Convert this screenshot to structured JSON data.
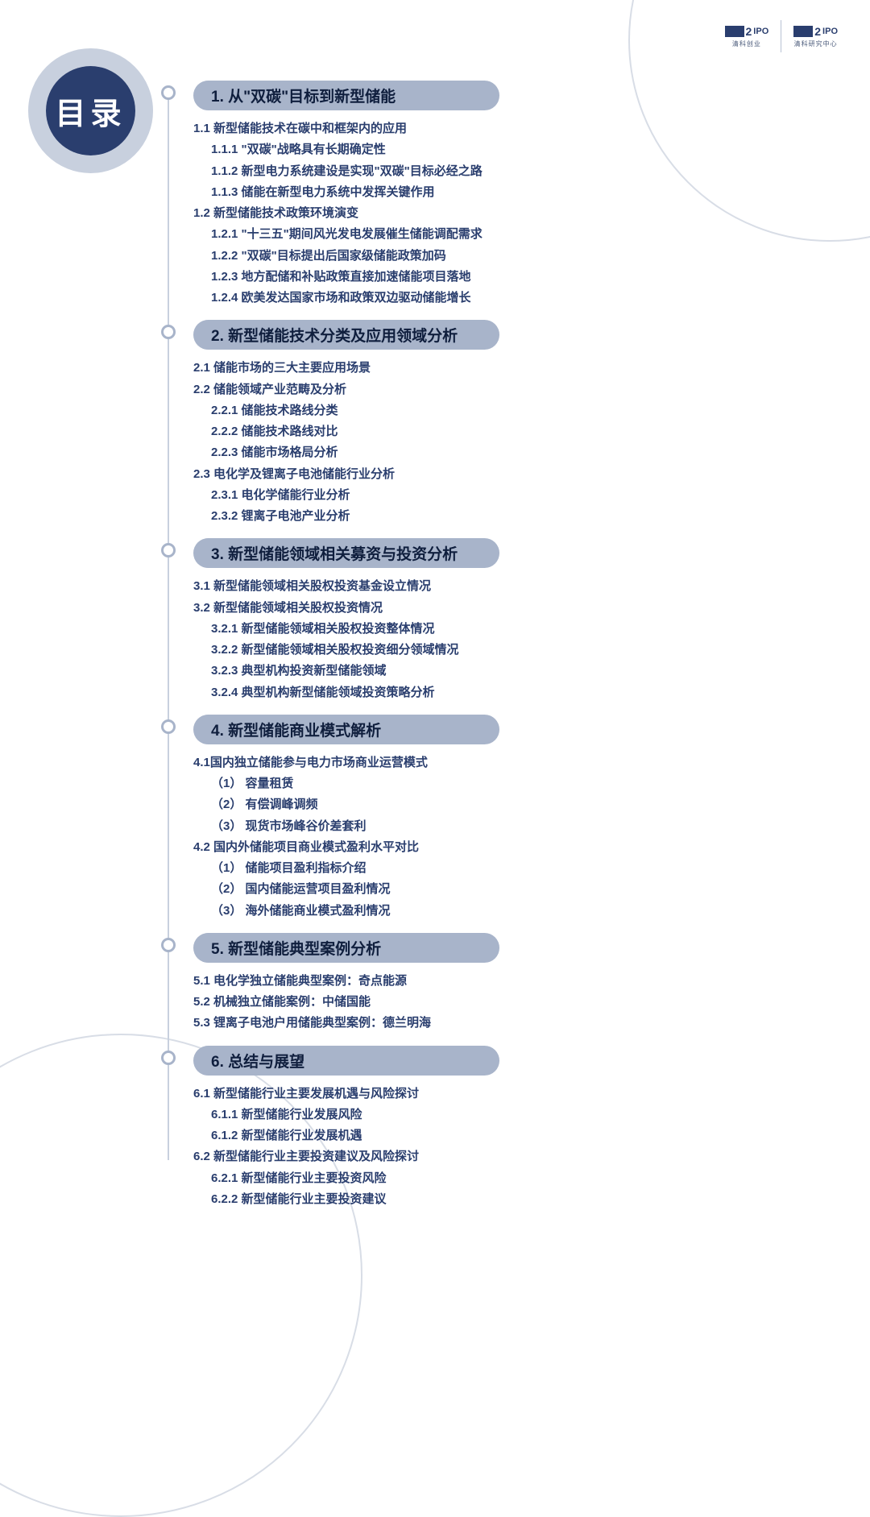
{
  "title": "目录",
  "logo": {
    "two": "2",
    "ipo": "IPO",
    "sub1": "清科创业",
    "sub2": "清科研究中心"
  },
  "colors": {
    "pill_bg": "#a8b4ca",
    "text_primary": "#2a3e6e",
    "badge_bg": "#2a3e6e",
    "ring": "#c8d0de",
    "line": "#c8d0de"
  },
  "sections": [
    {
      "heading": "1. 从\"双碳\"目标到新型储能",
      "items": [
        {
          "lvl": 1,
          "text": "1.1 新型储能技术在碳中和框架内的应用"
        },
        {
          "lvl": 2,
          "text": "1.1.1 \"双碳\"战略具有长期确定性"
        },
        {
          "lvl": 2,
          "text": "1.1.2 新型电力系统建设是实现\"双碳\"目标必经之路"
        },
        {
          "lvl": 2,
          "text": "1.1.3 储能在新型电力系统中发挥关键作用"
        },
        {
          "lvl": 1,
          "text": "1.2 新型储能技术政策环境演变"
        },
        {
          "lvl": 2,
          "text": "1.2.1 \"十三五\"期间风光发电发展催生储能调配需求"
        },
        {
          "lvl": 2,
          "text": "1.2.2 \"双碳\"目标提出后国家级储能政策加码"
        },
        {
          "lvl": 2,
          "text": "1.2.3 地方配储和补贴政策直接加速储能项目落地"
        },
        {
          "lvl": 2,
          "text": "1.2.4 欧美发达国家市场和政策双边驱动储能增长"
        }
      ]
    },
    {
      "heading": "2. 新型储能技术分类及应用领域分析",
      "items": [
        {
          "lvl": 1,
          "text": "2.1 储能市场的三大主要应用场景"
        },
        {
          "lvl": 1,
          "text": "2.2 储能领域产业范畴及分析"
        },
        {
          "lvl": 2,
          "text": "2.2.1 储能技术路线分类"
        },
        {
          "lvl": 2,
          "text": "2.2.2 储能技术路线对比"
        },
        {
          "lvl": 2,
          "text": "2.2.3 储能市场格局分析"
        },
        {
          "lvl": 1,
          "text": "2.3 电化学及锂离子电池储能行业分析"
        },
        {
          "lvl": 2,
          "text": "2.3.1 电化学储能行业分析"
        },
        {
          "lvl": 2,
          "text": "2.3.2 锂离子电池产业分析"
        }
      ]
    },
    {
      "heading": "3. 新型储能领域相关募资与投资分析",
      "items": [
        {
          "lvl": 1,
          "text": "3.1 新型储能领域相关股权投资基金设立情况"
        },
        {
          "lvl": 1,
          "text": "3.2 新型储能领域相关股权投资情况"
        },
        {
          "lvl": 2,
          "text": "3.2.1 新型储能领域相关股权投资整体情况"
        },
        {
          "lvl": 2,
          "text": "3.2.2 新型储能领域相关股权投资细分领域情况"
        },
        {
          "lvl": 2,
          "text": "3.2.3 典型机构投资新型储能领域"
        },
        {
          "lvl": 2,
          "text": "3.2.4 典型机构新型储能领域投资策略分析"
        }
      ]
    },
    {
      "heading": "4. 新型储能商业模式解析",
      "items": [
        {
          "lvl": 1,
          "text": "4.1国内独立储能参与电力市场商业运营模式"
        },
        {
          "lvl": 2,
          "text": "（1） 容量租赁"
        },
        {
          "lvl": 2,
          "text": "（2） 有偿调峰调频"
        },
        {
          "lvl": 2,
          "text": "（3） 现货市场峰谷价差套利"
        },
        {
          "lvl": 1,
          "text": "4.2 国内外储能项目商业模式盈利水平对比"
        },
        {
          "lvl": 2,
          "text": "（1） 储能项目盈利指标介绍"
        },
        {
          "lvl": 2,
          "text": "（2） 国内储能运营项目盈利情况"
        },
        {
          "lvl": 2,
          "text": "（3） 海外储能商业模式盈利情况"
        }
      ]
    },
    {
      "heading": "5. 新型储能典型案例分析",
      "items": [
        {
          "lvl": 1,
          "text": "5.1 电化学独立储能典型案例：奇点能源"
        },
        {
          "lvl": 1,
          "text": "5.2 机械独立储能案例：中储国能"
        },
        {
          "lvl": 1,
          "text": "5.3 锂离子电池户用储能典型案例：德兰明海"
        }
      ]
    },
    {
      "heading": "6. 总结与展望",
      "items": [
        {
          "lvl": 1,
          "text": "6.1 新型储能行业主要发展机遇与风险探讨"
        },
        {
          "lvl": 2,
          "text": "6.1.1 新型储能行业发展风险"
        },
        {
          "lvl": 2,
          "text": "6.1.2 新型储能行业发展机遇"
        },
        {
          "lvl": 1,
          "text": "6.2 新型储能行业主要投资建议及风险探讨"
        },
        {
          "lvl": 2,
          "text": "6.2.1 新型储能行业主要投资风险"
        },
        {
          "lvl": 2,
          "text": "6.2.2 新型储能行业主要投资建议"
        }
      ]
    }
  ]
}
